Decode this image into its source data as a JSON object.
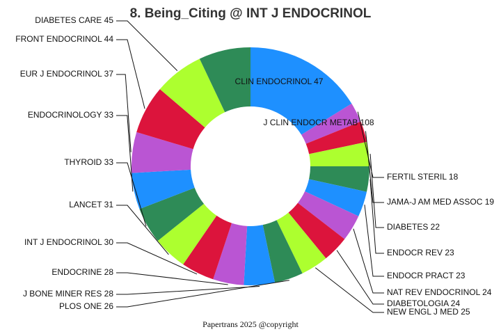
{
  "footer": "Papertrans 2025 @copyright",
  "chart_data": {
    "type": "pie",
    "donut": true,
    "title": "8. Being_Citing @ INT J ENDOCRINOL",
    "slices": [
      {
        "label": "J CLIN ENDOCR METAB",
        "value": 108,
        "color": "#1e90ff"
      },
      {
        "label": "FERTIL STERIL",
        "value": 18,
        "color": "#ba55d3"
      },
      {
        "label": "JAMA-J AM MED ASSOC",
        "value": 19,
        "color": "#dc143c"
      },
      {
        "label": "DIABETES",
        "value": 22,
        "color": "#adff2f"
      },
      {
        "label": "ENDOCR REV",
        "value": 23,
        "color": "#2e8b57"
      },
      {
        "label": "ENDOCR PRACT",
        "value": 23,
        "color": "#1e90ff"
      },
      {
        "label": "NAT REV ENDOCRINOL",
        "value": 24,
        "color": "#ba55d3"
      },
      {
        "label": "DIABETOLOGIA",
        "value": 24,
        "color": "#dc143c"
      },
      {
        "label": "NEW ENGL J MED",
        "value": 25,
        "color": "#adff2f"
      },
      {
        "label": "PLOS ONE",
        "value": 26,
        "color": "#2e8b57"
      },
      {
        "label": "J BONE MINER RES",
        "value": 28,
        "color": "#1e90ff"
      },
      {
        "label": "ENDOCRINE",
        "value": 28,
        "color": "#ba55d3"
      },
      {
        "label": "INT J ENDOCRINOL",
        "value": 30,
        "color": "#dc143c"
      },
      {
        "label": "LANCET",
        "value": 31,
        "color": "#adff2f"
      },
      {
        "label": "THYROID",
        "value": 33,
        "color": "#2e8b57"
      },
      {
        "label": "ENDOCRINOLOGY",
        "value": 33,
        "color": "#1e90ff"
      },
      {
        "label": "EUR J ENDOCRINOL",
        "value": 37,
        "color": "#ba55d3"
      },
      {
        "label": "FRONT ENDOCRINOL",
        "value": 44,
        "color": "#dc143c"
      },
      {
        "label": "DIABETES CARE",
        "value": 45,
        "color": "#adff2f"
      },
      {
        "label": "CLIN ENDOCRINOL",
        "value": 47,
        "color": "#2e8b57"
      }
    ],
    "legend": "none"
  }
}
